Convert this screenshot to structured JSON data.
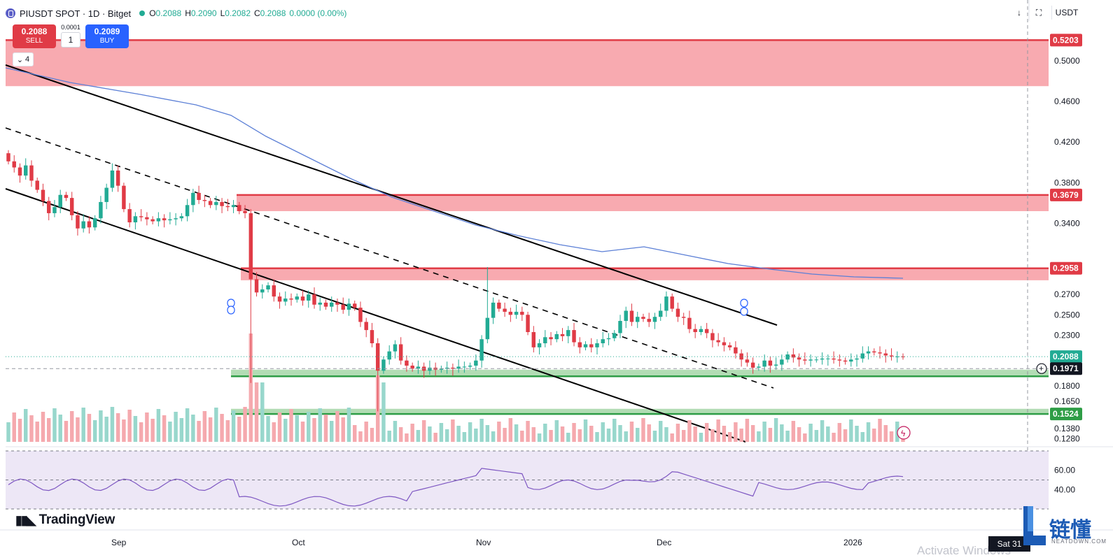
{
  "legend": {
    "symbol": "PIUSDT SPOT · 1D · Bitget",
    "open_label": "O",
    "open": "0.2088",
    "high_label": "H",
    "high": "0.2090",
    "low_label": "L",
    "low": "0.2082",
    "close_label": "C",
    "close": "0.2088",
    "change": "0.0000 (0.00%)"
  },
  "trade": {
    "sell_price": "0.2088",
    "sell_label": "SELL",
    "buy_price": "0.2089",
    "buy_label": "BUY",
    "spread": "0.0001",
    "quantity": "1"
  },
  "indicator_toggle": {
    "count": "4"
  },
  "top_right": {
    "currency": "USDT",
    "arrow_icon": "arrow-down-icon",
    "fullscreen_icon": "fullscreen-icon"
  },
  "colors": {
    "up": "#22ab94",
    "down": "#e03b46",
    "ma": "#5b7fd6",
    "resistance_zone": "#f7a1a7",
    "support_zone": "#a5d6a7",
    "rsi_band": "#ede7f6",
    "rsi_line": "#7e57c2"
  },
  "branding": {
    "tradingview": "TradingView",
    "watermark": "链懂",
    "watermark_sub": "NEATDOWN.COM",
    "activate_text": "Activate Windows"
  },
  "time_axis": {
    "labels": [
      "Sep",
      "Oct",
      "Nov",
      "Dec",
      "2026"
    ],
    "current_date": "Sat 31"
  },
  "chart_data": {
    "type": "candlestick",
    "symbol": "PIUSDT",
    "price_axis_ticks": [
      0.5,
      0.46,
      0.42,
      0.38,
      0.34,
      0.27,
      0.25,
      0.23,
      0.18,
      0.165,
      0.138,
      0.128
    ],
    "price_axis_ticks_display": [
      "0.5000",
      "0.4600",
      "0.4200",
      "0.3800",
      "0.3400",
      "0.2700",
      "0.2500",
      "0.2300",
      "0.1800",
      "0.1650",
      "0.1380",
      "0.1280"
    ],
    "price_tags": [
      {
        "value": "0.5203",
        "kind": "resistance"
      },
      {
        "value": "0.3679",
        "kind": "resistance"
      },
      {
        "value": "0.2958",
        "kind": "resistance"
      },
      {
        "value": "0.2088",
        "kind": "last"
      },
      {
        "value": "0.1971",
        "kind": "crosshair"
      },
      {
        "value": "0.1524",
        "kind": "support"
      }
    ],
    "resistance_zones": [
      [
        0.475,
        0.5203
      ],
      [
        0.352,
        0.3679
      ],
      [
        0.284,
        0.2958
      ]
    ],
    "support_zones": [
      [
        0.1895,
        0.196
      ],
      [
        0.1524,
        0.1575
      ]
    ],
    "candles_close": [
      0.401,
      0.395,
      0.387,
      0.397,
      0.382,
      0.373,
      0.362,
      0.35,
      0.356,
      0.368,
      0.365,
      0.348,
      0.335,
      0.342,
      0.336,
      0.345,
      0.361,
      0.375,
      0.392,
      0.377,
      0.354,
      0.341,
      0.347,
      0.346,
      0.344,
      0.342,
      0.345,
      0.343,
      0.344,
      0.345,
      0.347,
      0.358,
      0.37,
      0.363,
      0.362,
      0.358,
      0.361,
      0.357,
      0.356,
      0.358,
      0.352,
      0.35,
      0.285,
      0.272,
      0.275,
      0.279,
      0.268,
      0.263,
      0.266,
      0.265,
      0.268,
      0.264,
      0.27,
      0.26,
      0.262,
      0.258,
      0.262,
      0.26,
      0.255,
      0.261,
      0.257,
      0.243,
      0.235,
      0.222,
      0.195,
      0.206,
      0.214,
      0.221,
      0.205,
      0.2,
      0.197,
      0.199,
      0.195,
      0.198,
      0.196,
      0.197,
      0.198,
      0.197,
      0.199,
      0.199,
      0.2,
      0.205,
      0.226,
      0.247,
      0.262,
      0.256,
      0.253,
      0.25,
      0.253,
      0.25,
      0.233,
      0.218,
      0.222,
      0.228,
      0.226,
      0.231,
      0.229,
      0.235,
      0.223,
      0.218,
      0.221,
      0.218,
      0.222,
      0.226,
      0.227,
      0.232,
      0.244,
      0.254,
      0.243,
      0.248,
      0.246,
      0.243,
      0.248,
      0.254,
      0.268,
      0.256,
      0.248,
      0.247,
      0.236,
      0.233,
      0.236,
      0.232,
      0.225,
      0.223,
      0.22,
      0.218,
      0.212,
      0.206,
      0.203,
      0.198,
      0.199,
      0.205,
      0.2,
      0.201,
      0.206,
      0.211,
      0.208,
      0.206,
      0.205,
      0.206,
      0.206,
      0.207,
      0.207,
      0.206,
      0.205,
      0.204,
      0.206,
      0.207,
      0.212,
      0.214,
      0.213,
      0.212,
      0.21,
      0.209,
      0.209,
      0.2088
    ],
    "ma_note": "moving average overlay",
    "rsi_levels": [
      60.0,
      40.0
    ],
    "rsi_levels_display": [
      "60.00",
      "40.00"
    ]
  }
}
